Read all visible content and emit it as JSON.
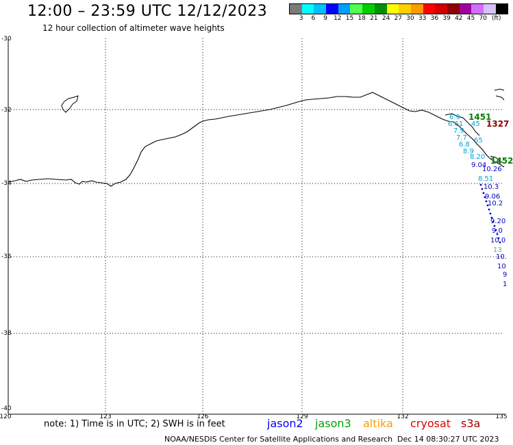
{
  "header": {
    "title": "12:00 – 23:59 UTC 12/12/2023",
    "subtitle": "12 hour collection of altimeter wave heights"
  },
  "legend": {
    "colors": [
      "#7a7a7a",
      "#00ffff",
      "#00bfff",
      "#0000ff",
      "#00a0ff",
      "#50ff50",
      "#00d000",
      "#009000",
      "#ffff00",
      "#ffd000",
      "#ff9900",
      "#ff0000",
      "#d00000",
      "#900000",
      "#a000a0",
      "#d070ff",
      "#d8c0ff",
      "#000000"
    ],
    "labels": [
      "3",
      "6",
      "9",
      "12",
      "15",
      "18",
      "21",
      "24",
      "27",
      "30",
      "33",
      "36",
      "39",
      "42",
      "45",
      "70"
    ],
    "unit": "(ft)"
  },
  "axes": {
    "y_ticks": [
      "-30",
      "-32",
      "-34",
      "-36",
      "-38",
      "-40"
    ],
    "x_ticks": [
      "120",
      "123",
      "126",
      "129",
      "132",
      "135"
    ]
  },
  "observations": {
    "track_labels": [
      {
        "text": "1451",
        "color": "#008000"
      },
      {
        "text": "1327",
        "color": "#8b0000"
      },
      {
        "text": "1452",
        "color": "#008000"
      }
    ],
    "values": [
      {
        "text": "6.9",
        "color": "#00a0d0"
      },
      {
        "text": "6.61",
        "color": "#00a0d0"
      },
      {
        "text": "45",
        "color": "#00a0d0"
      },
      {
        "text": "7.9",
        "color": "#00a0d0"
      },
      {
        "text": "7.7",
        "color": "#00a0d0"
      },
      {
        "text": "65",
        "color": "#00a0d0"
      },
      {
        "text": "6.8",
        "color": "#00a0d0"
      },
      {
        "text": "8.9",
        "color": "#00a0d0"
      },
      {
        "text": "8.20",
        "color": "#00a0d0"
      },
      {
        "text": "10.26",
        "color": "#0000c0"
      },
      {
        "text": "9.04",
        "color": "#0000c0"
      },
      {
        "text": "8.51",
        "color": "#00a0d0"
      },
      {
        "text": "10.3",
        "color": "#0000c0"
      },
      {
        "text": "9.06",
        "color": "#0000c0"
      },
      {
        "text": "10.2",
        "color": "#0000c0"
      },
      {
        "text": "9.20",
        "color": "#0000c0"
      },
      {
        "text": "9.0",
        "color": "#0000c0"
      },
      {
        "text": "10.0",
        "color": "#0000c0"
      },
      {
        "text": "13",
        "color": "#50c050"
      },
      {
        "text": "10.",
        "color": "#0000c0"
      },
      {
        "text": "10",
        "color": "#0000c0"
      },
      {
        "text": "9",
        "color": "#0000c0"
      },
      {
        "text": "1",
        "color": "#0000c0"
      }
    ]
  },
  "footer": {
    "note": "note:  1) Time is in UTC;  2) SWH is in feet",
    "satellites": [
      {
        "name": "jason2",
        "color": "#0000ff"
      },
      {
        "name": "jason3",
        "color": "#00a000"
      },
      {
        "name": "altika",
        "color": "#ff9900"
      },
      {
        "name": "cryosat",
        "color": "#e00000"
      },
      {
        "name": "s3a",
        "color": "#a00000"
      }
    ],
    "credit": "NOAA/NESDIS Center for Satellite Applications and Research",
    "timestamp": "Dec 14 08:30:27 UTC 2023"
  }
}
